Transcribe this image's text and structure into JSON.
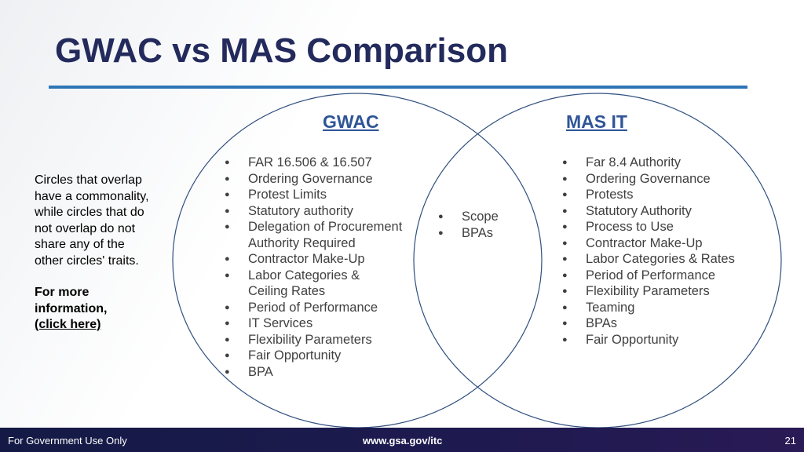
{
  "title": "GWAC vs MAS Comparison",
  "sidebar": {
    "description": "Circles that overlap have a commonality, while circles that do not overlap do not share any of the other circles' traits.",
    "more_info": "For more information,",
    "link": "(click here)"
  },
  "gwac": {
    "heading": "GWAC",
    "items": [
      "FAR 16.506 & 16.507",
      "Ordering Governance",
      "Protest Limits",
      "Statutory authority",
      [
        "Delegation of Procurement",
        "Authority Required"
      ],
      "Contractor Make-Up",
      [
        "Labor Categories &",
        "Ceiling Rates"
      ],
      "Period of Performance",
      "IT Services",
      "Flexibility Parameters",
      "Fair Opportunity",
      "BPA"
    ]
  },
  "overlap": {
    "items": [
      "Scope",
      "BPAs"
    ]
  },
  "mas": {
    "heading": "MAS IT",
    "items": [
      "Far 8.4 Authority",
      "Ordering Governance",
      "Protests",
      "Statutory Authority",
      "Process to Use",
      "Contractor Make-Up",
      "Labor Categories & Rates",
      "Period of Performance",
      "Flexibility Parameters",
      "Teaming",
      "BPAs",
      "Fair Opportunity"
    ]
  },
  "footer": {
    "left": "For Government Use Only",
    "center": "www.gsa.gov/itc",
    "page": "21"
  }
}
